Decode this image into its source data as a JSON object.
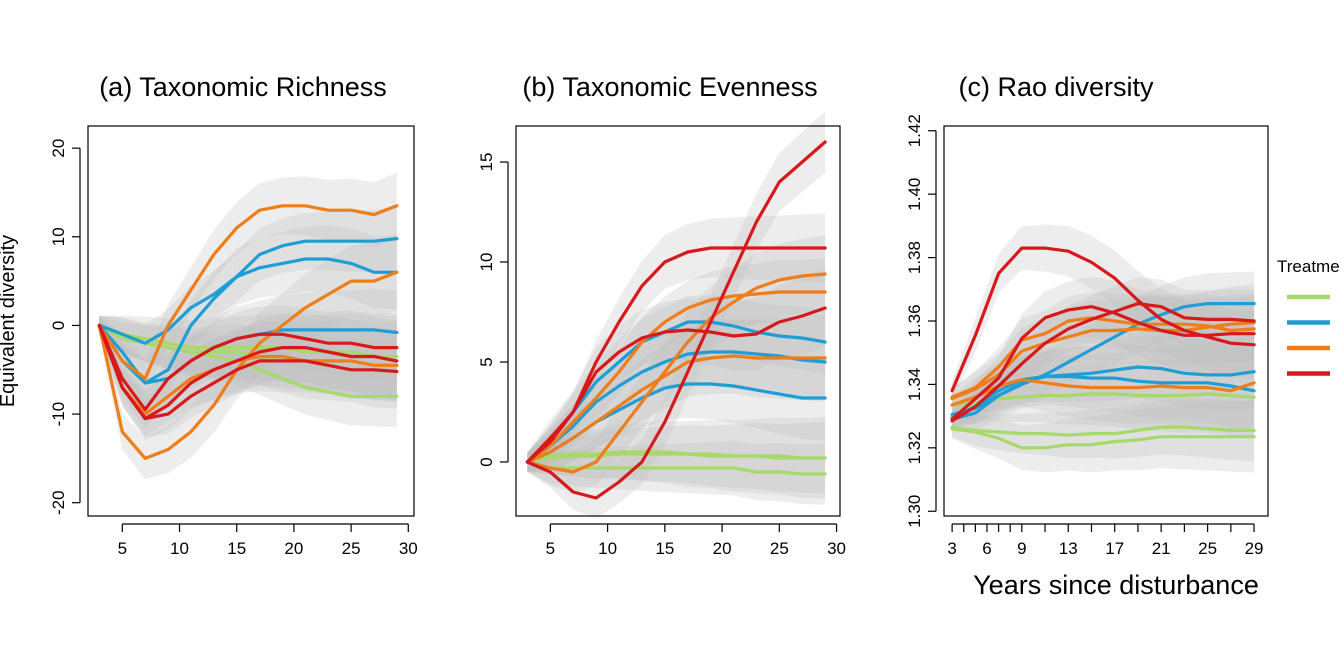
{
  "legend": {
    "title": "Treatme",
    "items": [
      {
        "color": "#a6d96a"
      },
      {
        "color": "#1f9ed6"
      },
      {
        "color": "#ee7d1a"
      },
      {
        "color": "#d7191c"
      }
    ]
  },
  "colors": {
    "green": "#a6d96a",
    "blue": "#1f9ed6",
    "orange": "#ee7d1a",
    "red": "#d7191c",
    "band": "#bdbdbd"
  },
  "chart_data": [
    {
      "type": "line",
      "title": "(a) Taxonomic Richness",
      "ylabel": "Equivalent diversity",
      "xlabel": "",
      "xlim": [
        2,
        30.5
      ],
      "ylim": [
        -21.5,
        22.5
      ],
      "xticks": [
        5,
        10,
        15,
        20,
        25,
        30
      ],
      "yticks": [
        -20,
        -10,
        0,
        10,
        20
      ],
      "x": [
        3,
        5,
        7,
        9,
        11,
        13,
        15,
        17,
        19,
        21,
        23,
        25,
        27,
        29
      ],
      "series": [
        {
          "color": "green",
          "values": [
            0,
            -1.5,
            -2,
            -2.5,
            -3,
            -3.5,
            -4,
            -5,
            -6,
            -7,
            -7.5,
            -8,
            -8,
            -8
          ]
        },
        {
          "color": "green",
          "values": [
            0,
            -1,
            -2,
            -2.5,
            -3,
            -3,
            -3,
            -3.5,
            -4,
            -4,
            -4,
            -4,
            -4.5,
            -4.5
          ]
        },
        {
          "color": "green",
          "values": [
            0,
            -1,
            -1.5,
            -2,
            -2.5,
            -2.5,
            -2.5,
            -2.5,
            -2.5,
            -3,
            -3,
            -3,
            -3.5,
            -3.5
          ]
        },
        {
          "color": "blue",
          "values": [
            0,
            -1,
            -2,
            -0.5,
            2,
            3.5,
            5.5,
            8,
            9,
            9.5,
            9.5,
            9.5,
            9.5,
            9.8
          ]
        },
        {
          "color": "blue",
          "values": [
            0,
            -4,
            -6.5,
            -5,
            0,
            3,
            5.5,
            6.5,
            7,
            7.5,
            7.5,
            7,
            6,
            6
          ]
        },
        {
          "color": "blue",
          "values": [
            0,
            -3,
            -6.5,
            -6,
            -4,
            -2.5,
            -1.5,
            -1,
            -0.5,
            -0.5,
            -0.5,
            -0.5,
            -0.5,
            -0.8
          ]
        },
        {
          "color": "orange",
          "values": [
            0,
            -4,
            -6,
            0,
            4,
            8,
            11,
            13,
            13.5,
            13.5,
            13,
            13,
            12.5,
            13.5
          ]
        },
        {
          "color": "orange",
          "values": [
            0,
            -12,
            -15,
            -14,
            -12,
            -9,
            -5,
            -2,
            0,
            2,
            3.5,
            5,
            5,
            6
          ]
        },
        {
          "color": "orange",
          "values": [
            0,
            -7,
            -10,
            -8,
            -6,
            -5,
            -4,
            -3.5,
            -3.5,
            -4,
            -4,
            -4,
            -4.5,
            -4.5
          ]
        },
        {
          "color": "red",
          "values": [
            0,
            -6,
            -9.5,
            -6,
            -4,
            -2.5,
            -1.5,
            -1,
            -1,
            -1.5,
            -2,
            -2,
            -2.5,
            -2.5
          ]
        },
        {
          "color": "red",
          "values": [
            0,
            -7,
            -10.5,
            -9,
            -6.5,
            -5,
            -4,
            -3,
            -2.5,
            -2.5,
            -3,
            -3.5,
            -3.5,
            -4
          ]
        },
        {
          "color": "red",
          "values": [
            0,
            -7,
            -10.5,
            -10,
            -8,
            -6.5,
            -5,
            -4,
            -4,
            -4,
            -4.5,
            -5,
            -5,
            -5.2
          ]
        }
      ]
    },
    {
      "type": "line",
      "title": "(b) Taxonomic Evenness",
      "ylabel": "",
      "xlabel": "",
      "xlim": [
        2,
        30.3
      ],
      "ylim": [
        -2.7,
        16.8
      ],
      "xticks": [
        5,
        10,
        15,
        20,
        25,
        30
      ],
      "yticks": [
        0,
        5,
        10,
        15
      ],
      "x": [
        3,
        5,
        7,
        9,
        11,
        13,
        15,
        17,
        19,
        21,
        23,
        25,
        27,
        29
      ],
      "series": [
        {
          "color": "green",
          "values": [
            0,
            -0.3,
            -0.3,
            -0.3,
            -0.3,
            -0.3,
            -0.3,
            -0.3,
            -0.3,
            -0.3,
            -0.5,
            -0.5,
            -0.6,
            -0.6
          ]
        },
        {
          "color": "green",
          "values": [
            0,
            0.2,
            0.3,
            0.3,
            0.4,
            0.4,
            0.4,
            0.4,
            0.3,
            0.3,
            0.3,
            0.2,
            0.2,
            0.2
          ]
        },
        {
          "color": "green",
          "values": [
            0,
            0.3,
            0.4,
            0.4,
            0.5,
            0.5,
            0.5,
            0.4,
            0.4,
            0.3,
            0.3,
            0.3,
            0.2,
            0.2
          ]
        },
        {
          "color": "blue",
          "values": [
            0,
            1,
            2.5,
            4,
            5,
            6,
            6.5,
            7,
            7,
            6.8,
            6.5,
            6.3,
            6.2,
            6
          ]
        },
        {
          "color": "blue",
          "values": [
            0,
            0.8,
            1.8,
            3,
            3.8,
            4.5,
            5,
            5.4,
            5.5,
            5.5,
            5.4,
            5.3,
            5.1,
            5
          ]
        },
        {
          "color": "blue",
          "values": [
            0,
            0.5,
            1.2,
            2,
            2.6,
            3.2,
            3.7,
            3.9,
            3.9,
            3.8,
            3.6,
            3.4,
            3.2,
            3.2
          ]
        },
        {
          "color": "orange",
          "values": [
            0,
            0.8,
            2,
            3.2,
            4.5,
            6,
            7,
            7.7,
            8.1,
            8.3,
            8.4,
            8.5,
            8.5,
            8.5
          ]
        },
        {
          "color": "orange",
          "values": [
            0,
            -0.3,
            -0.5,
            0,
            1.5,
            3,
            4.5,
            6,
            7.2,
            8,
            8.7,
            9.1,
            9.3,
            9.4
          ]
        },
        {
          "color": "orange",
          "values": [
            0,
            0.5,
            1.2,
            2,
            2.8,
            3.6,
            4.3,
            5,
            5.2,
            5.3,
            5.2,
            5.2,
            5.2,
            5.2
          ]
        },
        {
          "color": "red",
          "values": [
            0,
            1,
            2.5,
            5,
            7,
            8.8,
            10,
            10.5,
            10.7,
            10.7,
            10.7,
            10.7,
            10.7,
            10.7
          ]
        },
        {
          "color": "red",
          "values": [
            0,
            1.2,
            2.5,
            4.5,
            5.5,
            6.2,
            6.5,
            6.6,
            6.5,
            6.3,
            6.4,
            7,
            7.3,
            7.7
          ]
        },
        {
          "color": "red",
          "values": [
            0,
            -0.5,
            -1.5,
            -1.8,
            -1,
            0,
            2,
            4.5,
            7,
            9.5,
            12,
            14,
            15,
            16
          ]
        }
      ]
    },
    {
      "type": "line",
      "title": "(c) Rao diversity",
      "ylabel": "",
      "xlabel": "Years since disturbance",
      "xlim": [
        2.3,
        30.2
      ],
      "ylim": [
        1.2985,
        1.4215
      ],
      "xticks": [
        3,
        4,
        5,
        6,
        7,
        8,
        9,
        11,
        13,
        15,
        17,
        19,
        21,
        23,
        25,
        27,
        29
      ],
      "xticklabels": [
        "3",
        "6",
        "9",
        "13",
        "17",
        "21",
        "25",
        "29"
      ],
      "yticks": [
        1.3,
        1.32,
        1.34,
        1.36,
        1.38,
        1.4,
        1.42
      ],
      "yticklabels": [
        "1.30",
        "1.32",
        "1.34",
        "1.36",
        "1.38",
        "1.40",
        "1.42"
      ],
      "x": [
        3,
        5,
        7,
        9,
        11,
        13,
        15,
        17,
        19,
        21,
        23,
        25,
        27,
        29
      ],
      "series": [
        {
          "color": "green",
          "values": [
            1.3265,
            1.3255,
            1.325,
            1.3245,
            1.3245,
            1.324,
            1.3245,
            1.3245,
            1.3255,
            1.3265,
            1.3265,
            1.326,
            1.3255,
            1.3255
          ]
        },
        {
          "color": "green",
          "values": [
            1.326,
            1.325,
            1.323,
            1.32,
            1.32,
            1.321,
            1.321,
            1.322,
            1.3225,
            1.3235,
            1.3235,
            1.3235,
            1.3235,
            1.3235
          ]
        },
        {
          "color": "green",
          "values": [
            1.3335,
            1.334,
            1.3355,
            1.336,
            1.3365,
            1.3365,
            1.337,
            1.337,
            1.3365,
            1.3365,
            1.3365,
            1.337,
            1.3365,
            1.336
          ]
        },
        {
          "color": "blue",
          "values": [
            1.3305,
            1.3325,
            1.3365,
            1.34,
            1.343,
            1.347,
            1.351,
            1.355,
            1.359,
            1.362,
            1.3645,
            1.3655,
            1.3655,
            1.3655
          ]
        },
        {
          "color": "blue",
          "values": [
            1.3295,
            1.333,
            1.338,
            1.3415,
            1.3425,
            1.343,
            1.3435,
            1.3445,
            1.3455,
            1.345,
            1.3435,
            1.343,
            1.343,
            1.344
          ]
        },
        {
          "color": "blue",
          "values": [
            1.329,
            1.331,
            1.3365,
            1.3405,
            1.3425,
            1.3425,
            1.342,
            1.342,
            1.341,
            1.3405,
            1.3405,
            1.3405,
            1.3395,
            1.338
          ]
        },
        {
          "color": "orange",
          "values": [
            1.336,
            1.339,
            1.3455,
            1.354,
            1.356,
            1.36,
            1.361,
            1.36,
            1.359,
            1.359,
            1.359,
            1.3585,
            1.357,
            1.3575
          ]
        },
        {
          "color": "orange",
          "values": [
            1.3355,
            1.3385,
            1.343,
            1.3505,
            1.353,
            1.355,
            1.357,
            1.357,
            1.3575,
            1.357,
            1.357,
            1.358,
            1.359,
            1.3595
          ]
        },
        {
          "color": "orange",
          "values": [
            1.3335,
            1.336,
            1.3395,
            1.3415,
            1.3405,
            1.3395,
            1.339,
            1.339,
            1.339,
            1.3395,
            1.339,
            1.339,
            1.338,
            1.3405
          ]
        },
        {
          "color": "red",
          "values": [
            1.338,
            1.3555,
            1.375,
            1.383,
            1.383,
            1.382,
            1.3785,
            1.3735,
            1.3665,
            1.3605,
            1.357,
            1.355,
            1.353,
            1.3525
          ]
        },
        {
          "color": "red",
          "values": [
            1.329,
            1.3355,
            1.342,
            1.3545,
            1.361,
            1.3635,
            1.3645,
            1.3625,
            1.3595,
            1.357,
            1.3555,
            1.3555,
            1.356,
            1.356
          ]
        },
        {
          "color": "red",
          "values": [
            1.3285,
            1.333,
            1.3395,
            1.3465,
            1.353,
            1.3575,
            1.3605,
            1.363,
            1.3655,
            1.3645,
            1.361,
            1.3605,
            1.3605,
            1.36
          ]
        }
      ]
    }
  ]
}
